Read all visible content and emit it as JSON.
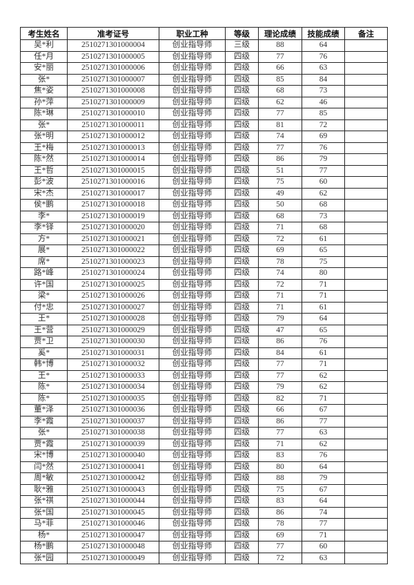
{
  "headers": [
    "考生姓名",
    "准考证号",
    "职业工种",
    "等级",
    "理论成绩",
    "技能成绩",
    "备注"
  ],
  "rows": [
    [
      "吴*利",
      "2510271301000004",
      "创业指导师",
      "三级",
      "88",
      "64",
      ""
    ],
    [
      "任*月",
      "2510271301000005",
      "创业指导师",
      "四级",
      "77",
      "76",
      ""
    ],
    [
      "安*丽",
      "2510271301000006",
      "创业指导师",
      "四级",
      "66",
      "63",
      ""
    ],
    [
      "张*",
      "2510271301000007",
      "创业指导师",
      "四级",
      "85",
      "84",
      ""
    ],
    [
      "焦*姿",
      "2510271301000008",
      "创业指导师",
      "四级",
      "68",
      "73",
      ""
    ],
    [
      "孙*萍",
      "2510271301000009",
      "创业指导师",
      "四级",
      "62",
      "46",
      ""
    ],
    [
      "陈*琳",
      "2510271301000010",
      "创业指导师",
      "四级",
      "77",
      "85",
      ""
    ],
    [
      "张*",
      "2510271301000011",
      "创业指导师",
      "四级",
      "81",
      "72",
      ""
    ],
    [
      "张*明",
      "2510271301000012",
      "创业指导师",
      "四级",
      "74",
      "69",
      ""
    ],
    [
      "王*梅",
      "2510271301000013",
      "创业指导师",
      "四级",
      "77",
      "76",
      ""
    ],
    [
      "陈*然",
      "2510271301000014",
      "创业指导师",
      "四级",
      "86",
      "79",
      ""
    ],
    [
      "王*哲",
      "2510271301000015",
      "创业指导师",
      "四级",
      "51",
      "77",
      ""
    ],
    [
      "彭*波",
      "2510271301000016",
      "创业指导师",
      "四级",
      "75",
      "60",
      ""
    ],
    [
      "宋*杰",
      "2510271301000017",
      "创业指导师",
      "四级",
      "49",
      "62",
      ""
    ],
    [
      "侯*鹏",
      "2510271301000018",
      "创业指导师",
      "四级",
      "50",
      "68",
      ""
    ],
    [
      "李*",
      "2510271301000019",
      "创业指导师",
      "四级",
      "68",
      "73",
      ""
    ],
    [
      "李*铎",
      "2510271301000020",
      "创业指导师",
      "四级",
      "71",
      "68",
      ""
    ],
    [
      "方*",
      "2510271301000021",
      "创业指导师",
      "四级",
      "72",
      "61",
      ""
    ],
    [
      "展*",
      "2510271301000022",
      "创业指导师",
      "四级",
      "69",
      "65",
      ""
    ],
    [
      "席*",
      "2510271301000023",
      "创业指导师",
      "四级",
      "78",
      "75",
      ""
    ],
    [
      "路*峰",
      "2510271301000024",
      "创业指导师",
      "四级",
      "74",
      "80",
      ""
    ],
    [
      "许*国",
      "2510271301000025",
      "创业指导师",
      "四级",
      "72",
      "71",
      ""
    ],
    [
      "梁*",
      "2510271301000026",
      "创业指导师",
      "四级",
      "71",
      "71",
      ""
    ],
    [
      "付*忠",
      "2510271301000027",
      "创业指导师",
      "四级",
      "71",
      "61",
      ""
    ],
    [
      "王*",
      "2510271301000028",
      "创业指导师",
      "四级",
      "79",
      "64",
      ""
    ],
    [
      "王*营",
      "2510271301000029",
      "创业指导师",
      "四级",
      "47",
      "65",
      ""
    ],
    [
      "贾*卫",
      "2510271301000030",
      "创业指导师",
      "四级",
      "86",
      "76",
      ""
    ],
    [
      "奚*",
      "2510271301000031",
      "创业指导师",
      "四级",
      "84",
      "61",
      ""
    ],
    [
      "韩*博",
      "2510271301000032",
      "创业指导师",
      "四级",
      "77",
      "71",
      ""
    ],
    [
      "王*",
      "2510271301000033",
      "创业指导师",
      "四级",
      "77",
      "62",
      ""
    ],
    [
      "陈*",
      "2510271301000034",
      "创业指导师",
      "四级",
      "79",
      "62",
      ""
    ],
    [
      "陈*",
      "2510271301000035",
      "创业指导师",
      "四级",
      "82",
      "71",
      ""
    ],
    [
      "董*泽",
      "2510271301000036",
      "创业指导师",
      "四级",
      "66",
      "67",
      ""
    ],
    [
      "李*霞",
      "2510271301000037",
      "创业指导师",
      "四级",
      "86",
      "77",
      ""
    ],
    [
      "张*",
      "2510271301000038",
      "创业指导师",
      "四级",
      "77",
      "63",
      ""
    ],
    [
      "贾*霞",
      "2510271301000039",
      "创业指导师",
      "四级",
      "71",
      "62",
      ""
    ],
    [
      "宋*博",
      "2510271301000040",
      "创业指导师",
      "四级",
      "83",
      "76",
      ""
    ],
    [
      "闫*然",
      "2510271301000041",
      "创业指导师",
      "四级",
      "80",
      "64",
      ""
    ],
    [
      "周*敏",
      "2510271301000042",
      "创业指导师",
      "四级",
      "88",
      "79",
      ""
    ],
    [
      "耿*雅",
      "2510271301000043",
      "创业指导师",
      "四级",
      "75",
      "67",
      ""
    ],
    [
      "张*祺",
      "2510271301000044",
      "创业指导师",
      "四级",
      "83",
      "64",
      ""
    ],
    [
      "张*国",
      "2510271301000045",
      "创业指导师",
      "四级",
      "86",
      "74",
      ""
    ],
    [
      "马*菲",
      "2510271301000046",
      "创业指导师",
      "四级",
      "78",
      "77",
      ""
    ],
    [
      "杨*",
      "2510271301000047",
      "创业指导师",
      "四级",
      "69",
      "71",
      ""
    ],
    [
      "杨*鹏",
      "2510271301000048",
      "创业指导师",
      "四级",
      "77",
      "60",
      ""
    ],
    [
      "张*园",
      "2510271301000049",
      "创业指导师",
      "四级",
      "72",
      "63",
      ""
    ]
  ]
}
